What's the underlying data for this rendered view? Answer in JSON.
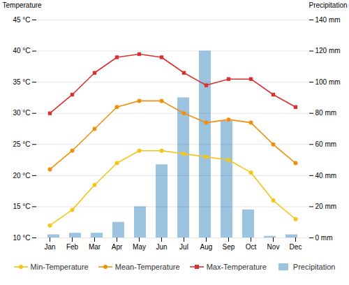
{
  "chart_data": {
    "type": "combo",
    "categories": [
      "Jan",
      "Feb",
      "Mar",
      "Apr",
      "May",
      "Jun",
      "Jul",
      "Aug",
      "Sep",
      "Oct",
      "Nov",
      "Dec"
    ],
    "series": [
      {
        "name": "Min-Temperature",
        "type": "line",
        "color": "#f5c518",
        "marker": "circle",
        "values": [
          12,
          14.5,
          18.5,
          22,
          24,
          24,
          23.5,
          23,
          22.5,
          20.5,
          16,
          13
        ]
      },
      {
        "name": "Mean-Temperature",
        "type": "line",
        "color": "#f0900a",
        "marker": "circle",
        "values": [
          21,
          24,
          27.5,
          31,
          32,
          32,
          30,
          28.5,
          29,
          28.5,
          25,
          22
        ]
      },
      {
        "name": "Max-Temperature",
        "type": "line",
        "color": "#d93030",
        "marker": "square",
        "values": [
          30,
          33,
          36.5,
          39,
          39.5,
          39,
          36.5,
          34.5,
          35.5,
          35.5,
          33,
          31
        ]
      },
      {
        "name": "Precipitation",
        "type": "bar",
        "axis": "y2",
        "color": "#7bafd4",
        "values": [
          2,
          3,
          3,
          10,
          20,
          47,
          90,
          120,
          75,
          18,
          1,
          2
        ]
      }
    ],
    "y_label": "Temperature",
    "y2_label": "Precipitation",
    "ylim": [
      10,
      45
    ],
    "yticks": [
      {
        "value": 10,
        "label": "10 °C"
      },
      {
        "value": 15,
        "label": "15 °C"
      },
      {
        "value": 20,
        "label": "20 °C"
      },
      {
        "value": 25,
        "label": "25 °C"
      },
      {
        "value": 30,
        "label": "30 °C"
      },
      {
        "value": 35,
        "label": "35 °C"
      },
      {
        "value": 40,
        "label": "40 °C"
      },
      {
        "value": 45,
        "label": "45 °C"
      }
    ],
    "y2lim": [
      0,
      140
    ],
    "y2ticks": [
      {
        "value": 0,
        "label": "0 mm"
      },
      {
        "value": 20,
        "label": "20 mm"
      },
      {
        "value": 40,
        "label": "40 mm"
      },
      {
        "value": 60,
        "label": "60 mm"
      },
      {
        "value": 80,
        "label": "80 mm"
      },
      {
        "value": 100,
        "label": "100 mm"
      },
      {
        "value": 120,
        "label": "120 mm"
      },
      {
        "value": 140,
        "label": "140 mm"
      }
    ],
    "grid": true,
    "legend": "bottom"
  }
}
